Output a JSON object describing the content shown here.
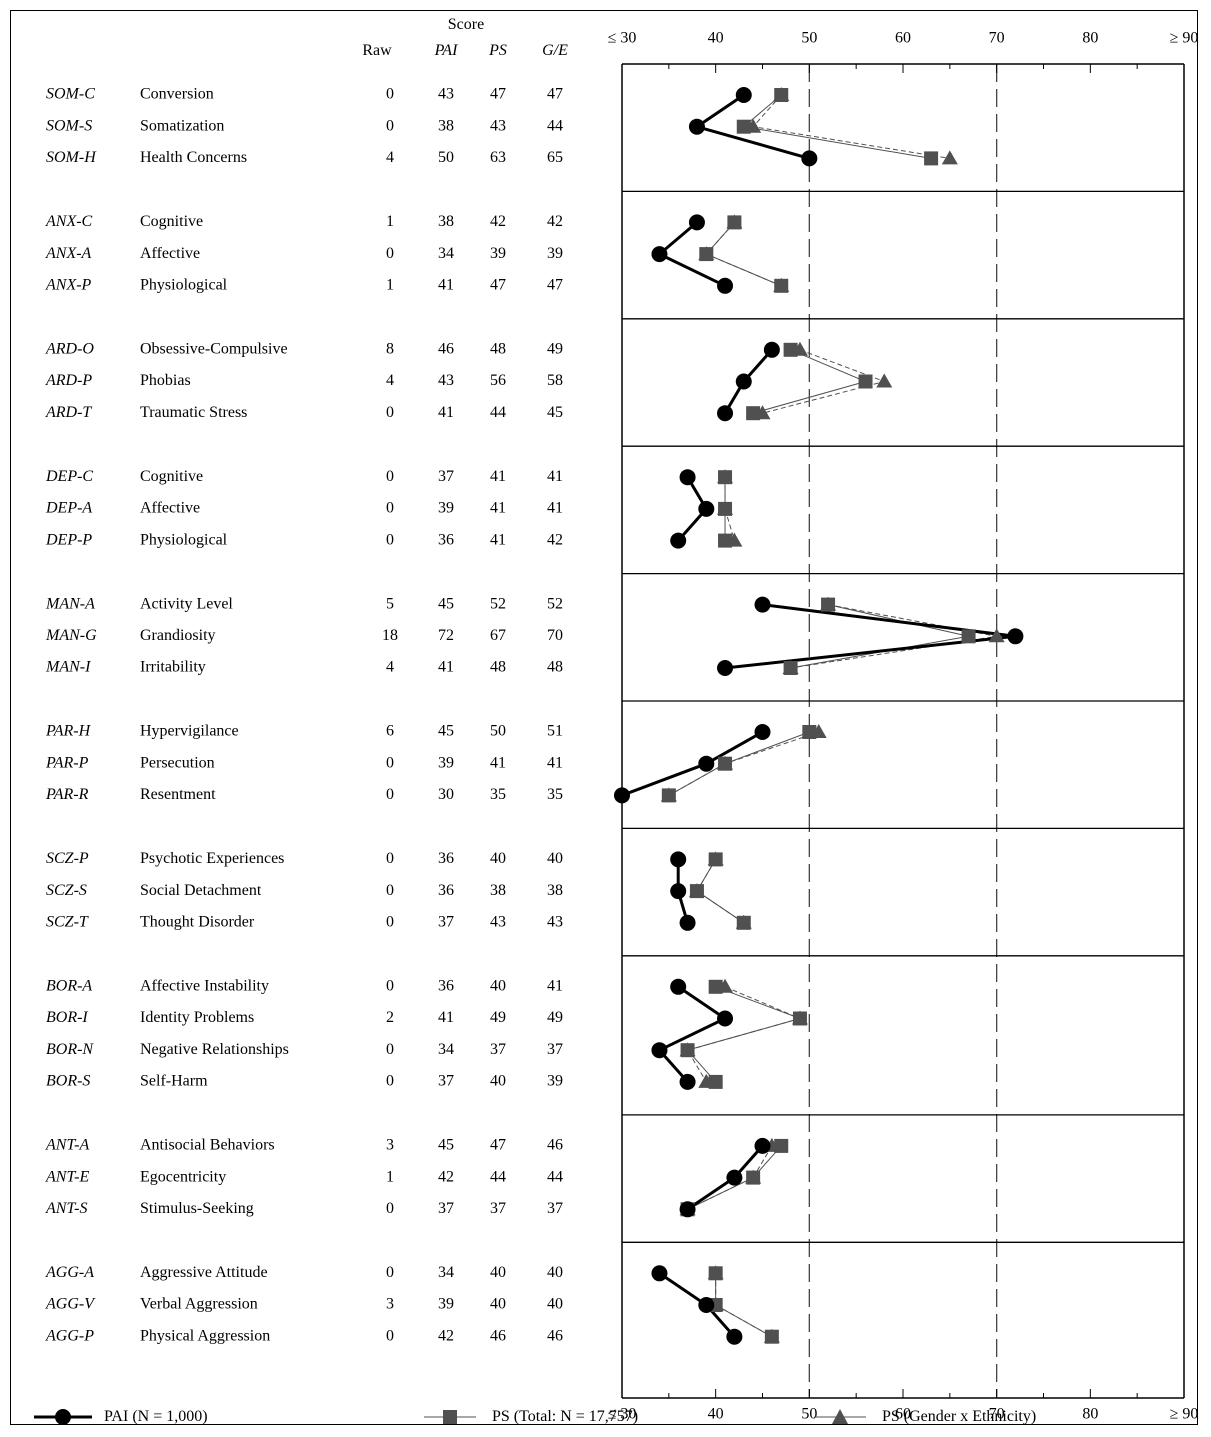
{
  "header": {
    "score_label": "Score",
    "raw_label": "Raw",
    "pai_label": "PAI",
    "ps_label": "PS",
    "ge_label": "G/E"
  },
  "legend": {
    "pai": "PAI (N = 1,000)",
    "ps_total": "PS (Total: N = 17,757)",
    "ps_ge": "PS (Gender x Ethnicity)"
  },
  "colors": {
    "pai": "#000000",
    "ps": "#505050"
  },
  "chart_data": {
    "type": "line",
    "orientation": "horizontal-profile",
    "xlim": [
      30,
      90
    ],
    "x_tick_labels": [
      "≤ 30",
      "40",
      "50",
      "60",
      "70",
      "80",
      "≥ 90"
    ],
    "x_ticks": [
      30,
      40,
      50,
      60,
      70,
      80,
      90
    ],
    "reference_lines": [
      50,
      70
    ],
    "series": [
      {
        "name": "PAI (N = 1,000)",
        "key": "pai",
        "marker": "circle"
      },
      {
        "name": "PS (Total: N = 17,757)",
        "key": "ps",
        "marker": "square"
      },
      {
        "name": "PS (Gender x Ethnicity)",
        "key": "ge",
        "marker": "triangle"
      }
    ],
    "groups": [
      {
        "rows": [
          {
            "code": "SOM-C",
            "name": "Conversion",
            "raw": 0,
            "pai": 43,
            "ps": 47,
            "ge": 47
          },
          {
            "code": "SOM-S",
            "name": "Somatization",
            "raw": 0,
            "pai": 38,
            "ps": 43,
            "ge": 44
          },
          {
            "code": "SOM-H",
            "name": "Health Concerns",
            "raw": 4,
            "pai": 50,
            "ps": 63,
            "ge": 65
          }
        ]
      },
      {
        "rows": [
          {
            "code": "ANX-C",
            "name": "Cognitive",
            "raw": 1,
            "pai": 38,
            "ps": 42,
            "ge": 42
          },
          {
            "code": "ANX-A",
            "name": "Affective",
            "raw": 0,
            "pai": 34,
            "ps": 39,
            "ge": 39
          },
          {
            "code": "ANX-P",
            "name": "Physiological",
            "raw": 1,
            "pai": 41,
            "ps": 47,
            "ge": 47
          }
        ]
      },
      {
        "rows": [
          {
            "code": "ARD-O",
            "name": "Obsessive-Compulsive",
            "raw": 8,
            "pai": 46,
            "ps": 48,
            "ge": 49
          },
          {
            "code": "ARD-P",
            "name": "Phobias",
            "raw": 4,
            "pai": 43,
            "ps": 56,
            "ge": 58
          },
          {
            "code": "ARD-T",
            "name": "Traumatic Stress",
            "raw": 0,
            "pai": 41,
            "ps": 44,
            "ge": 45
          }
        ]
      },
      {
        "rows": [
          {
            "code": "DEP-C",
            "name": "Cognitive",
            "raw": 0,
            "pai": 37,
            "ps": 41,
            "ge": 41
          },
          {
            "code": "DEP-A",
            "name": "Affective",
            "raw": 0,
            "pai": 39,
            "ps": 41,
            "ge": 41
          },
          {
            "code": "DEP-P",
            "name": "Physiological",
            "raw": 0,
            "pai": 36,
            "ps": 41,
            "ge": 42
          }
        ]
      },
      {
        "rows": [
          {
            "code": "MAN-A",
            "name": "Activity Level",
            "raw": 5,
            "pai": 45,
            "ps": 52,
            "ge": 52
          },
          {
            "code": "MAN-G",
            "name": "Grandiosity",
            "raw": 18,
            "pai": 72,
            "ps": 67,
            "ge": 70
          },
          {
            "code": "MAN-I",
            "name": "Irritability",
            "raw": 4,
            "pai": 41,
            "ps": 48,
            "ge": 48
          }
        ]
      },
      {
        "rows": [
          {
            "code": "PAR-H",
            "name": "Hypervigilance",
            "raw": 6,
            "pai": 45,
            "ps": 50,
            "ge": 51
          },
          {
            "code": "PAR-P",
            "name": "Persecution",
            "raw": 0,
            "pai": 39,
            "ps": 41,
            "ge": 41
          },
          {
            "code": "PAR-R",
            "name": "Resentment",
            "raw": 0,
            "pai": 30,
            "ps": 35,
            "ge": 35
          }
        ]
      },
      {
        "rows": [
          {
            "code": "SCZ-P",
            "name": "Psychotic Experiences",
            "raw": 0,
            "pai": 36,
            "ps": 40,
            "ge": 40
          },
          {
            "code": "SCZ-S",
            "name": "Social Detachment",
            "raw": 0,
            "pai": 36,
            "ps": 38,
            "ge": 38
          },
          {
            "code": "SCZ-T",
            "name": "Thought Disorder",
            "raw": 0,
            "pai": 37,
            "ps": 43,
            "ge": 43
          }
        ]
      },
      {
        "rows": [
          {
            "code": "BOR-A",
            "name": "Affective Instability",
            "raw": 0,
            "pai": 36,
            "ps": 40,
            "ge": 41
          },
          {
            "code": "BOR-I",
            "name": "Identity Problems",
            "raw": 2,
            "pai": 41,
            "ps": 49,
            "ge": 49
          },
          {
            "code": "BOR-N",
            "name": "Negative Relationships",
            "raw": 0,
            "pai": 34,
            "ps": 37,
            "ge": 37
          },
          {
            "code": "BOR-S",
            "name": "Self-Harm",
            "raw": 0,
            "pai": 37,
            "ps": 40,
            "ge": 39
          }
        ]
      },
      {
        "rows": [
          {
            "code": "ANT-A",
            "name": "Antisocial Behaviors",
            "raw": 3,
            "pai": 45,
            "ps": 47,
            "ge": 46
          },
          {
            "code": "ANT-E",
            "name": "Egocentricity",
            "raw": 1,
            "pai": 42,
            "ps": 44,
            "ge": 44
          },
          {
            "code": "ANT-S",
            "name": "Stimulus-Seeking",
            "raw": 0,
            "pai": 37,
            "ps": 37,
            "ge": 37
          }
        ]
      },
      {
        "rows": [
          {
            "code": "AGG-A",
            "name": "Aggressive Attitude",
            "raw": 0,
            "pai": 34,
            "ps": 40,
            "ge": 40
          },
          {
            "code": "AGG-V",
            "name": "Verbal Aggression",
            "raw": 3,
            "pai": 39,
            "ps": 40,
            "ge": 40
          },
          {
            "code": "AGG-P",
            "name": "Physical Aggression",
            "raw": 0,
            "pai": 42,
            "ps": 46,
            "ge": 46
          }
        ]
      }
    ]
  }
}
